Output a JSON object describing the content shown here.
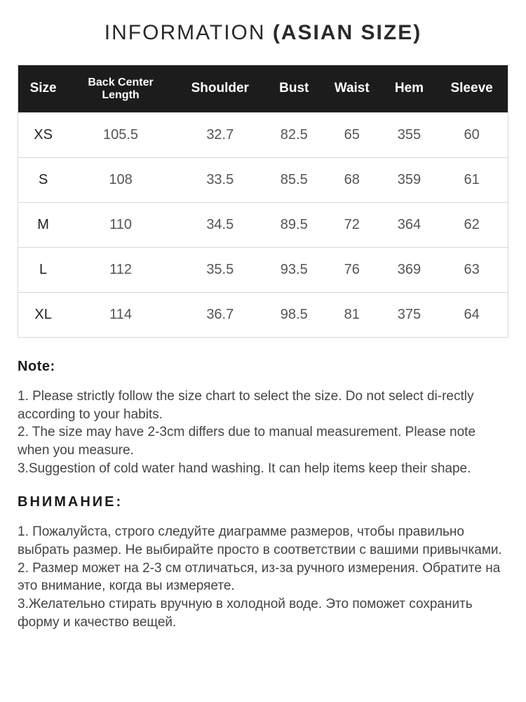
{
  "title": {
    "prefix": "INFORMATION ",
    "bold": "(ASIAN SIZE)"
  },
  "table": {
    "header_bg": "#1c1c1c",
    "header_color": "#ffffff",
    "border_color": "#d8d8d8",
    "cell_color": "#555555",
    "columns": [
      "Size",
      "Back Center Length",
      "Shoulder",
      "Bust",
      "Waist",
      "Hem",
      "Sleeve"
    ],
    "rows": [
      [
        "XS",
        "105.5",
        "32.7",
        "82.5",
        "65",
        "355",
        "60"
      ],
      [
        "S",
        "108",
        "33.5",
        "85.5",
        "68",
        "359",
        "61"
      ],
      [
        "M",
        "110",
        "34.5",
        "89.5",
        "72",
        "364",
        "62"
      ],
      [
        "L",
        "112",
        "35.5",
        "93.5",
        "76",
        "369",
        "63"
      ],
      [
        "XL",
        "114",
        "36.7",
        "98.5",
        "81",
        "375",
        "64"
      ]
    ]
  },
  "notes_en": {
    "heading": "Note:",
    "body": "1. Please strictly follow the size chart  to select the size. Do not select di-rectly according to your habits.\n2. The size may have 2-3cm differs due to manual measurement. Please note when you measure.\n3.Suggestion of cold water hand washing. It can help items keep their shape."
  },
  "notes_ru": {
    "heading": "ВНИМАНИЕ:",
    "body": "1. Пожалуйста, строго следуйте диаграмме размеров, чтобы правильно выбрать размер. Не выбирайте просто в соответствии с вашими привычками.\n2. Размер может на 2-3 см отличаться, из-за ручного измерения. Обратите на это внимание, когда вы измеряете.\n3.Желательно стирать вручную в холодной воде. Это поможет сохранить форму и качество вещей."
  }
}
